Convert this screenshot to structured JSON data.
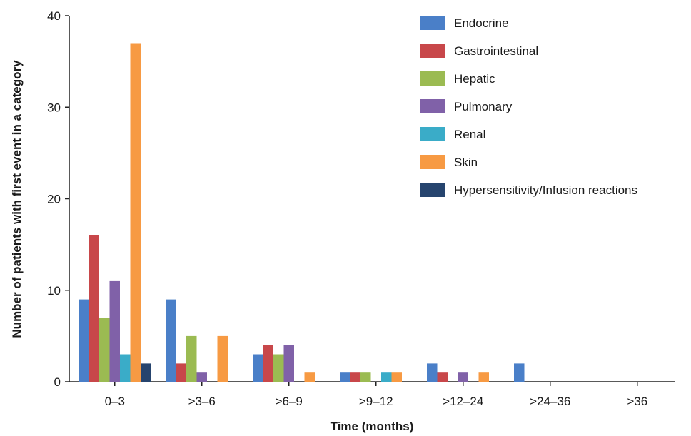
{
  "chart_data": {
    "type": "bar",
    "title": "",
    "xlabel": "Time (months)",
    "ylabel": "Number of patients with first event in a category",
    "ylim": [
      0,
      40
    ],
    "yticks": [
      0,
      10,
      20,
      30,
      40
    ],
    "categories": [
      "0–3",
      ">3–6",
      ">6–9",
      ">9–12",
      ">12–24",
      ">24–36",
      ">36"
    ],
    "legend_position": "top-right",
    "grid": false,
    "series": [
      {
        "name": "Endocrine",
        "color": "#4a7fc8",
        "values": [
          9,
          9,
          3,
          1,
          2,
          2,
          0
        ]
      },
      {
        "name": "Gastrointestinal",
        "color": "#c8474a",
        "values": [
          16,
          2,
          4,
          1,
          1,
          0,
          0
        ]
      },
      {
        "name": "Hepatic",
        "color": "#9bbb52",
        "values": [
          7,
          5,
          3,
          1,
          0,
          0,
          0
        ]
      },
      {
        "name": "Pulmonary",
        "color": "#8061a8",
        "values": [
          11,
          1,
          4,
          0,
          1,
          0,
          0
        ]
      },
      {
        "name": "Renal",
        "color": "#3aacc8",
        "values": [
          3,
          0,
          0,
          1,
          0,
          0,
          0
        ]
      },
      {
        "name": "Skin",
        "color": "#f79a43",
        "values": [
          37,
          5,
          1,
          1,
          1,
          0,
          0
        ]
      },
      {
        "name": "Hypersensitivity/Infusion reactions",
        "color": "#26446e",
        "values": [
          2,
          0,
          0,
          0,
          0,
          0,
          0
        ]
      }
    ]
  }
}
